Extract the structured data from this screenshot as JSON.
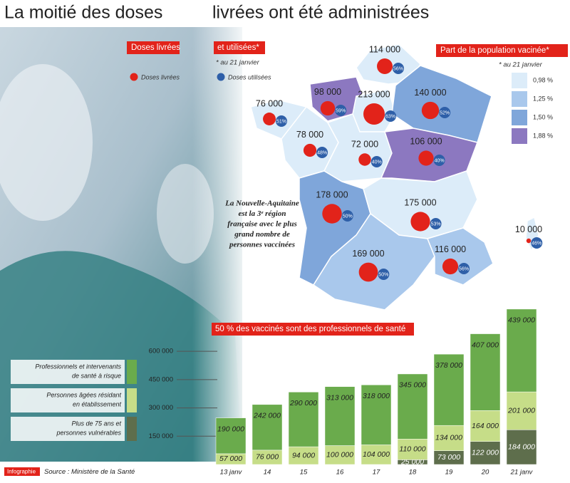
{
  "title": [
    "La moitié des doses",
    "livrées ont été administrées"
  ],
  "map": {
    "headers": [
      "Doses livrées",
      "et utilisées*"
    ],
    "note": "* au 21 janvier",
    "legend": [
      "Doses livrées",
      "Doses utilisées"
    ],
    "share_title": "Part de la population vacinée*",
    "share_note": "* au 21 janvier",
    "classes": [
      {
        "label": "0,98 %",
        "color": "#dcecf9"
      },
      {
        "label": "1,25 %",
        "color": "#a9c8ec"
      },
      {
        "label": "1,50 %",
        "color": "#7fa6da"
      },
      {
        "label": "1,88 %",
        "color": "#8c78c0"
      }
    ],
    "regions": [
      {
        "doses": 114000,
        "label": "114 000",
        "used": 56,
        "used_label": "56%",
        "class": 0
      },
      {
        "doses": 98000,
        "label": "98 000",
        "used": 59,
        "used_label": "59%",
        "class": 3
      },
      {
        "doses": 213000,
        "label": "213 000",
        "used": 63,
        "used_label": "63%",
        "class": 0
      },
      {
        "doses": 140000,
        "label": "140 000",
        "used": 52,
        "used_label": "52%",
        "class": 2
      },
      {
        "doses": 76000,
        "label": "76 000",
        "used": 51,
        "used_label": "51%",
        "class": 0
      },
      {
        "doses": 78000,
        "label": "78 000",
        "used": 48,
        "used_label": "48%",
        "class": 0
      },
      {
        "doses": 72000,
        "label": "72 000",
        "used": 40,
        "used_label": "40%",
        "class": 0
      },
      {
        "doses": 106000,
        "label": "106 000",
        "used": 40,
        "used_label": "40%",
        "class": 3
      },
      {
        "doses": 178000,
        "label": "178 000",
        "used": 50,
        "used_label": "50%",
        "class": 2
      },
      {
        "doses": 175000,
        "label": "175 000",
        "used": 53,
        "used_label": "53%",
        "class": 0
      },
      {
        "doses": 169000,
        "label": "169 000",
        "used": 50,
        "used_label": "50%",
        "class": 1
      },
      {
        "doses": 116000,
        "label": "116 000",
        "used": 56,
        "used_label": "56%",
        "class": 1
      },
      {
        "doses": 10000,
        "label": "10 000",
        "used": 46,
        "used_label": "46%",
        "class": 0
      }
    ],
    "annotation": [
      "La Nouvelle-Aquitaine",
      "est la 3ᵉ région",
      "française avec le plus",
      "grand nombre de",
      "personnes vaccinées"
    ]
  },
  "chart_data": {
    "type": "stacked_bar",
    "title": "50 % des vaccinés sont des professionnels de santé",
    "categories": [
      "13 janv",
      "14",
      "15",
      "16",
      "17",
      "18",
      "19",
      "20",
      "21 janv"
    ],
    "series": [
      {
        "name": [
          "Plus de 75 ans et",
          "personnes vulnérables"
        ],
        "color": "#5e6e4c",
        "values": [
          null,
          null,
          null,
          null,
          null,
          25000,
          73000,
          122000,
          184000
        ],
        "value_labels": [
          null,
          null,
          null,
          null,
          null,
          "25 000",
          "73 000",
          "122 000",
          "184 000"
        ]
      },
      {
        "name": [
          "Personnes âgées résidant",
          "en établissement"
        ],
        "color": "#c6dd88",
        "values": [
          57000,
          76000,
          94000,
          100000,
          104000,
          110000,
          134000,
          164000,
          201000
        ],
        "value_labels": [
          "57 000",
          "76 000",
          "94 000",
          "100 000",
          "104 000",
          "110 000",
          "134 000",
          "164 000",
          "201 000"
        ]
      },
      {
        "name": [
          "Professionnels et intervenants",
          "de santé à risque"
        ],
        "color": "#6aab4c",
        "values": [
          190000,
          242000,
          290000,
          313000,
          318000,
          345000,
          378000,
          407000,
          439000
        ],
        "value_labels": [
          "190 000",
          "242 000",
          "290 000",
          "313 000",
          "318 000",
          "345 000",
          "378 000",
          "407 000",
          "439 000"
        ]
      }
    ],
    "ylim": [
      0,
      850000
    ],
    "yticks": [
      {
        "value": 150000,
        "label": "150 000"
      },
      {
        "value": 300000,
        "label": "300 000"
      },
      {
        "value": 450000,
        "label": "450 000"
      },
      {
        "value": 600000,
        "label": "600 000"
      }
    ]
  },
  "footer": {
    "brand": "Infographie",
    "source": "Source : Ministère de la Santé"
  }
}
